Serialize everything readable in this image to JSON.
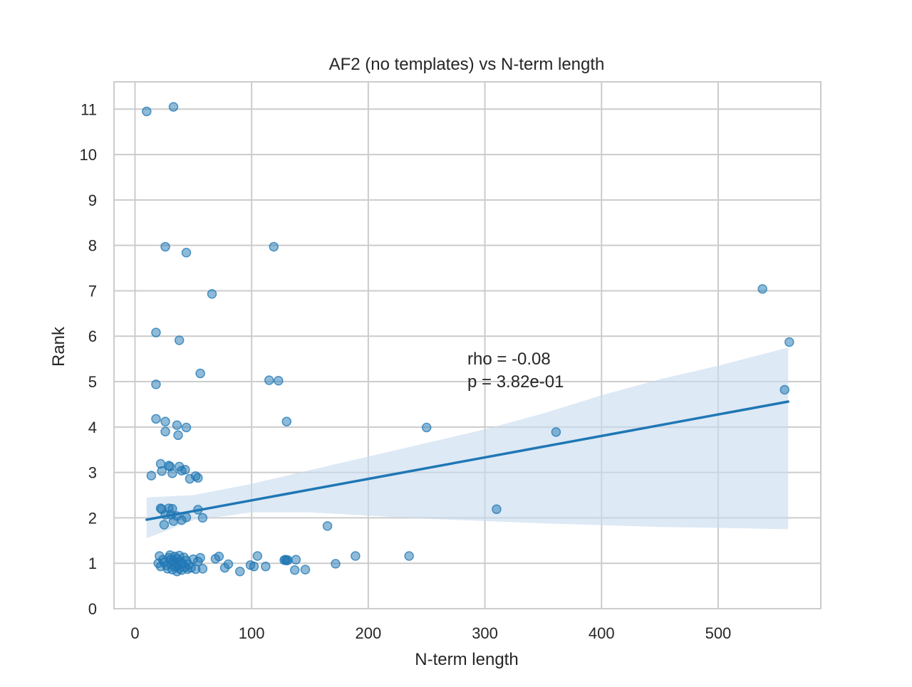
{
  "chart_data": {
    "type": "scatter",
    "title": "AF2 (no templates) vs N-term length",
    "xlabel": "N-term length",
    "ylabel": "Rank",
    "xlim": [
      -18,
      588
    ],
    "ylim": [
      0,
      11.6
    ],
    "xticks": [
      "0",
      "100",
      "200",
      "300",
      "400",
      "500"
    ],
    "yticks": [
      "0",
      "1",
      "2",
      "3",
      "4",
      "5",
      "6",
      "7",
      "8",
      "9",
      "10",
      "11"
    ],
    "grid": true,
    "point_color": "#1f77b4",
    "line_color": "#1f77b4",
    "band_color": "#c6dbef",
    "annotation": {
      "rho": "rho = -0.08",
      "p": "p = 3.82e-01",
      "x": 285,
      "y": 5.5
    },
    "regression": {
      "x": [
        10,
        560
      ],
      "y": [
        1.96,
        4.56
      ],
      "ci_x": [
        10,
        50,
        100,
        150,
        200,
        250,
        300,
        350,
        400,
        450,
        500,
        560
      ],
      "ci_low": [
        1.55,
        1.95,
        2.12,
        2.12,
        2.05,
        1.98,
        1.93,
        1.88,
        1.84,
        1.8,
        1.78,
        1.75
      ],
      "ci_high": [
        2.45,
        2.5,
        2.75,
        3.05,
        3.35,
        3.65,
        3.95,
        4.3,
        4.7,
        5.05,
        5.35,
        5.75
      ]
    },
    "points": [
      [
        10,
        10.95
      ],
      [
        33,
        11.05
      ],
      [
        26,
        7.97
      ],
      [
        44,
        7.84
      ],
      [
        119,
        7.97
      ],
      [
        66,
        6.93
      ],
      [
        538,
        7.04
      ],
      [
        18,
        6.08
      ],
      [
        38,
        5.91
      ],
      [
        561,
        5.87
      ],
      [
        56,
        5.18
      ],
      [
        18,
        4.94
      ],
      [
        115,
        5.03
      ],
      [
        123,
        5.02
      ],
      [
        557,
        4.82
      ],
      [
        18,
        4.18
      ],
      [
        26,
        4.12
      ],
      [
        26,
        3.9
      ],
      [
        36,
        4.04
      ],
      [
        37,
        3.82
      ],
      [
        44,
        3.99
      ],
      [
        130,
        4.12
      ],
      [
        250,
        3.99
      ],
      [
        361,
        3.89
      ],
      [
        14,
        2.93
      ],
      [
        22,
        3.19
      ],
      [
        23,
        3.03
      ],
      [
        29,
        3.15
      ],
      [
        30,
        3.13
      ],
      [
        32,
        2.98
      ],
      [
        38,
        3.13
      ],
      [
        40,
        3.04
      ],
      [
        43,
        3.06
      ],
      [
        47,
        2.86
      ],
      [
        52,
        2.92
      ],
      [
        54,
        2.88
      ],
      [
        22,
        2.21
      ],
      [
        23,
        2.19
      ],
      [
        25,
        1.85
      ],
      [
        26,
        2.07
      ],
      [
        29,
        2.21
      ],
      [
        31,
        2.07
      ],
      [
        32,
        2.2
      ],
      [
        33,
        1.93
      ],
      [
        36,
        2.04
      ],
      [
        40,
        1.95
      ],
      [
        44,
        2.01
      ],
      [
        54,
        2.18
      ],
      [
        58,
        2.0
      ],
      [
        165,
        1.82
      ],
      [
        310,
        2.19
      ],
      [
        20,
        1.0
      ],
      [
        21,
        1.16
      ],
      [
        22,
        0.93
      ],
      [
        24,
        1.08
      ],
      [
        25,
        1.02
      ],
      [
        27,
        0.95
      ],
      [
        28,
        0.88
      ],
      [
        29,
        1.12
      ],
      [
        30,
        1.18
      ],
      [
        31,
        0.97
      ],
      [
        31,
        1.08
      ],
      [
        32,
        0.86
      ],
      [
        33,
        1.05
      ],
      [
        34,
        1.15
      ],
      [
        35,
        0.92
      ],
      [
        35,
        1.01
      ],
      [
        36,
        0.82
      ],
      [
        36,
        1.1
      ],
      [
        37,
        0.96
      ],
      [
        38,
        1.17
      ],
      [
        38,
        0.88
      ],
      [
        39,
        1.04
      ],
      [
        40,
        0.85
      ],
      [
        41,
        0.99
      ],
      [
        42,
        1.13
      ],
      [
        43,
        0.91
      ],
      [
        44,
        1.06
      ],
      [
        45,
        0.87
      ],
      [
        46,
        0.97
      ],
      [
        48,
        0.9
      ],
      [
        50,
        1.09
      ],
      [
        52,
        0.87
      ],
      [
        54,
        1.04
      ],
      [
        56,
        1.12
      ],
      [
        58,
        0.88
      ],
      [
        69,
        1.1
      ],
      [
        72,
        1.15
      ],
      [
        77,
        0.9
      ],
      [
        80,
        0.98
      ],
      [
        90,
        0.82
      ],
      [
        99,
        0.96
      ],
      [
        102,
        0.93
      ],
      [
        105,
        1.16
      ],
      [
        112,
        0.93
      ],
      [
        128,
        1.07
      ],
      [
        129,
        1.08
      ],
      [
        130,
        1.06
      ],
      [
        131,
        1.07
      ],
      [
        137,
        0.85
      ],
      [
        138,
        1.08
      ],
      [
        146,
        0.86
      ],
      [
        172,
        0.99
      ],
      [
        189,
        1.16
      ],
      [
        235,
        1.16
      ]
    ]
  }
}
